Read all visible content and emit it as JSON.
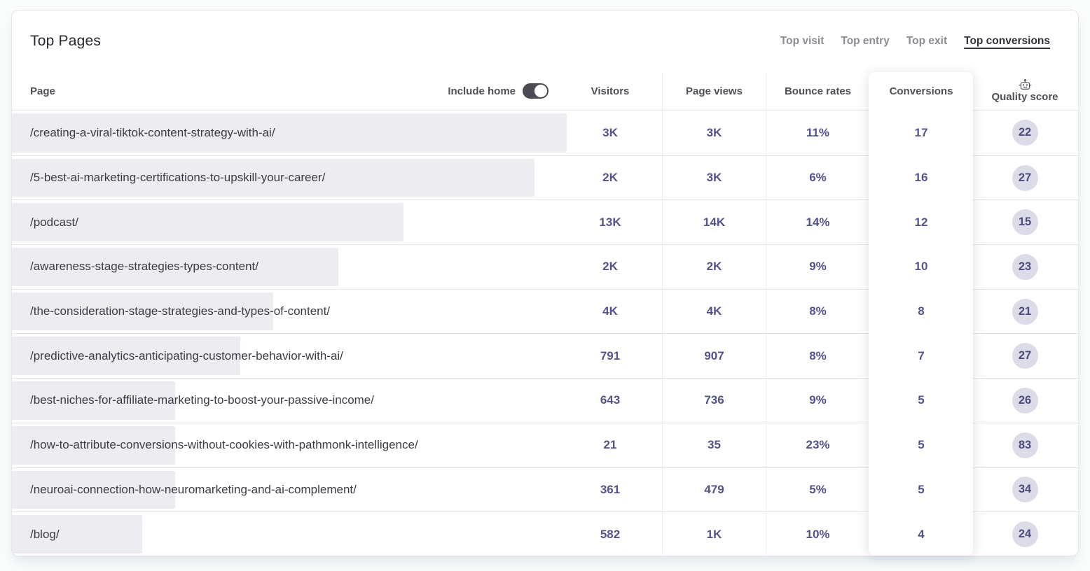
{
  "widget": {
    "title": "Top Pages",
    "tabs": [
      {
        "label": "Top visit",
        "active": false
      },
      {
        "label": "Top entry",
        "active": false
      },
      {
        "label": "Top exit",
        "active": false
      },
      {
        "label": "Top conversions",
        "active": true
      }
    ],
    "include_home": {
      "label": "Include home",
      "enabled": true
    },
    "columns": {
      "page": "Page",
      "visitors": "Visitors",
      "page_views": "Page views",
      "bounce_rates": "Bounce rates",
      "conversions": "Conversions",
      "quality_score": "Quality score"
    },
    "rows": [
      {
        "page": "/creating-a-viral-tiktok-content-strategy-with-ai/",
        "visitors": "3K",
        "page_views": "3K",
        "bounce_rate": "11%",
        "conversions": 17,
        "quality_score": 22
      },
      {
        "page": "/5-best-ai-marketing-certifications-to-upskill-your-career/",
        "visitors": "2K",
        "page_views": "3K",
        "bounce_rate": "6%",
        "conversions": 16,
        "quality_score": 27
      },
      {
        "page": "/podcast/",
        "visitors": "13K",
        "page_views": "14K",
        "bounce_rate": "14%",
        "conversions": 12,
        "quality_score": 15
      },
      {
        "page": "/awareness-stage-strategies-types-content/",
        "visitors": "2K",
        "page_views": "2K",
        "bounce_rate": "9%",
        "conversions": 10,
        "quality_score": 23
      },
      {
        "page": "/the-consideration-stage-strategies-and-types-of-content/",
        "visitors": "4K",
        "page_views": "4K",
        "bounce_rate": "8%",
        "conversions": 8,
        "quality_score": 21
      },
      {
        "page": "/predictive-analytics-anticipating-customer-behavior-with-ai/",
        "visitors": "791",
        "page_views": "907",
        "bounce_rate": "8%",
        "conversions": 7,
        "quality_score": 27
      },
      {
        "page": "/best-niches-for-affiliate-marketing-to-boost-your-passive-income/",
        "visitors": "643",
        "page_views": "736",
        "bounce_rate": "9%",
        "conversions": 5,
        "quality_score": 26
      },
      {
        "page": "/how-to-attribute-conversions-without-cookies-with-pathmonk-intelligence/",
        "visitors": "21",
        "page_views": "35",
        "bounce_rate": "23%",
        "conversions": 5,
        "quality_score": 83
      },
      {
        "page": "/neuroai-connection-how-neuromarketing-and-ai-complement/",
        "visitors": "361",
        "page_views": "479",
        "bounce_rate": "5%",
        "conversions": 5,
        "quality_score": 34
      },
      {
        "page": "/blog/",
        "visitors": "582",
        "page_views": "1K",
        "bounce_rate": "10%",
        "conversions": 4,
        "quality_score": 24
      }
    ],
    "colors": {
      "value_text": "#53538b",
      "bar_fill": "#ececf1",
      "badge_bg": "#dcdce9",
      "toggle_on": "#4b4b54",
      "active_tab": "#30303a",
      "inactive_tab": "#8b8b94"
    },
    "icons": {
      "quality_score": "robot-icon"
    }
  }
}
